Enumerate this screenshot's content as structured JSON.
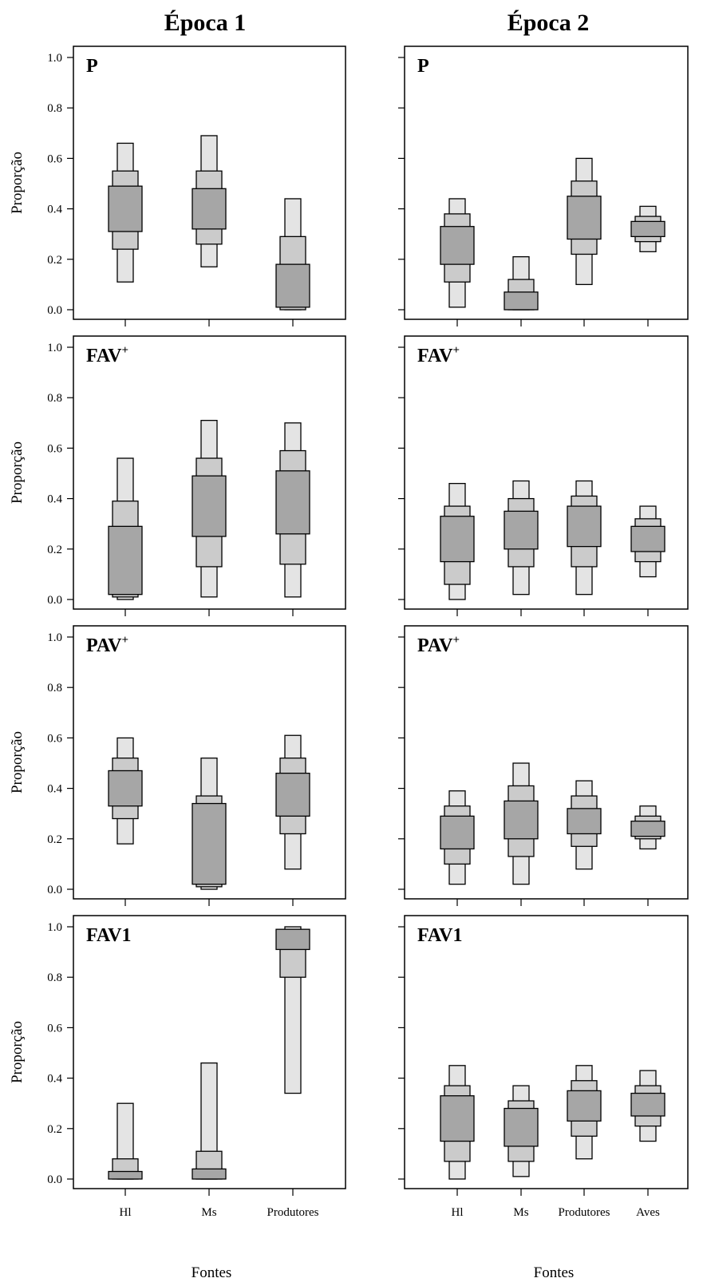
{
  "colors": {
    "ci95": "#e4e4e4",
    "ci75": "#cbcbcb",
    "ci50": "#a6a6a6",
    "outline": "#000000"
  },
  "chart_data": {
    "type": "box",
    "ylabel": "Proporção",
    "xlabel": "Fontes",
    "ylim": [
      0,
      1
    ],
    "yticks": [
      "0.0",
      "0.2",
      "0.4",
      "0.6",
      "0.8",
      "1.0"
    ],
    "columns": [
      "Época 1",
      "Época 2"
    ],
    "categories_epoca1": [
      "Hl",
      "Ms",
      "Produtores"
    ],
    "categories_epoca2": [
      "Hl",
      "Ms",
      "Produtores",
      "Aves"
    ],
    "panels": [
      {
        "column": 0,
        "row": 0,
        "label": "P",
        "sup": "",
        "series": [
          {
            "name": "Hl",
            "ci95": [
              0.11,
              0.66
            ],
            "ci75": [
              0.24,
              0.55
            ],
            "ci50": [
              0.31,
              0.49
            ]
          },
          {
            "name": "Ms",
            "ci95": [
              0.17,
              0.69
            ],
            "ci75": [
              0.26,
              0.55
            ],
            "ci50": [
              0.32,
              0.48
            ]
          },
          {
            "name": "Produtores",
            "ci95": [
              0.0,
              0.44
            ],
            "ci75": [
              0.0,
              0.29
            ],
            "ci50": [
              0.01,
              0.18
            ]
          }
        ]
      },
      {
        "column": 1,
        "row": 0,
        "label": "P",
        "sup": "",
        "series": [
          {
            "name": "Hl",
            "ci95": [
              0.01,
              0.44
            ],
            "ci75": [
              0.11,
              0.38
            ],
            "ci50": [
              0.18,
              0.33
            ]
          },
          {
            "name": "Ms",
            "ci95": [
              0.0,
              0.21
            ],
            "ci75": [
              0.0,
              0.12
            ],
            "ci50": [
              0.0,
              0.07
            ]
          },
          {
            "name": "Produtores",
            "ci95": [
              0.1,
              0.6
            ],
            "ci75": [
              0.22,
              0.51
            ],
            "ci50": [
              0.28,
              0.45
            ]
          },
          {
            "name": "Aves",
            "ci95": [
              0.23,
              0.41
            ],
            "ci75": [
              0.27,
              0.37
            ],
            "ci50": [
              0.29,
              0.35
            ]
          }
        ]
      },
      {
        "column": 0,
        "row": 1,
        "label": "FAV",
        "sup": "+",
        "series": [
          {
            "name": "Hl",
            "ci95": [
              0.0,
              0.56
            ],
            "ci75": [
              0.01,
              0.39
            ],
            "ci50": [
              0.02,
              0.29
            ]
          },
          {
            "name": "Ms",
            "ci95": [
              0.01,
              0.71
            ],
            "ci75": [
              0.13,
              0.56
            ],
            "ci50": [
              0.25,
              0.49
            ]
          },
          {
            "name": "Produtores",
            "ci95": [
              0.01,
              0.7
            ],
            "ci75": [
              0.14,
              0.59
            ],
            "ci50": [
              0.26,
              0.51
            ]
          }
        ]
      },
      {
        "column": 1,
        "row": 1,
        "label": "FAV",
        "sup": "+",
        "series": [
          {
            "name": "Hl",
            "ci95": [
              0.0,
              0.46
            ],
            "ci75": [
              0.06,
              0.37
            ],
            "ci50": [
              0.15,
              0.33
            ]
          },
          {
            "name": "Ms",
            "ci95": [
              0.02,
              0.47
            ],
            "ci75": [
              0.13,
              0.4
            ],
            "ci50": [
              0.2,
              0.35
            ]
          },
          {
            "name": "Produtores",
            "ci95": [
              0.02,
              0.47
            ],
            "ci75": [
              0.13,
              0.41
            ],
            "ci50": [
              0.21,
              0.37
            ]
          },
          {
            "name": "Aves",
            "ci95": [
              0.09,
              0.37
            ],
            "ci75": [
              0.15,
              0.32
            ],
            "ci50": [
              0.19,
              0.29
            ]
          }
        ]
      },
      {
        "column": 0,
        "row": 2,
        "label": "PAV",
        "sup": "+",
        "series": [
          {
            "name": "Hl",
            "ci95": [
              0.18,
              0.6
            ],
            "ci75": [
              0.28,
              0.52
            ],
            "ci50": [
              0.33,
              0.47
            ]
          },
          {
            "name": "Ms",
            "ci95": [
              0.0,
              0.52
            ],
            "ci75": [
              0.01,
              0.37
            ],
            "ci50": [
              0.02,
              0.34
            ]
          },
          {
            "name": "Produtores",
            "ci95": [
              0.08,
              0.61
            ],
            "ci75": [
              0.22,
              0.52
            ],
            "ci50": [
              0.29,
              0.46
            ]
          }
        ]
      },
      {
        "column": 1,
        "row": 2,
        "label": "PAV",
        "sup": "+",
        "series": [
          {
            "name": "Hl",
            "ci95": [
              0.02,
              0.39
            ],
            "ci75": [
              0.1,
              0.33
            ],
            "ci50": [
              0.16,
              0.29
            ]
          },
          {
            "name": "Ms",
            "ci95": [
              0.02,
              0.5
            ],
            "ci75": [
              0.13,
              0.41
            ],
            "ci50": [
              0.2,
              0.35
            ]
          },
          {
            "name": "Produtores",
            "ci95": [
              0.08,
              0.43
            ],
            "ci75": [
              0.17,
              0.37
            ],
            "ci50": [
              0.22,
              0.32
            ]
          },
          {
            "name": "Aves",
            "ci95": [
              0.16,
              0.33
            ],
            "ci75": [
              0.2,
              0.29
            ],
            "ci50": [
              0.21,
              0.27
            ]
          }
        ]
      },
      {
        "column": 0,
        "row": 3,
        "label": "FAV1",
        "sup": "",
        "series": [
          {
            "name": "Hl",
            "ci95": [
              0.0,
              0.3
            ],
            "ci75": [
              0.0,
              0.08
            ],
            "ci50": [
              0.0,
              0.03
            ]
          },
          {
            "name": "Ms",
            "ci95": [
              0.0,
              0.46
            ],
            "ci75": [
              0.0,
              0.11
            ],
            "ci50": [
              0.0,
              0.04
            ]
          },
          {
            "name": "Produtores",
            "ci95": [
              0.34,
              1.0
            ],
            "ci75": [
              0.8,
              0.99
            ],
            "ci50": [
              0.91,
              0.99
            ]
          }
        ]
      },
      {
        "column": 1,
        "row": 3,
        "label": "FAV1",
        "sup": "",
        "series": [
          {
            "name": "Hl",
            "ci95": [
              0.0,
              0.45
            ],
            "ci75": [
              0.07,
              0.37
            ],
            "ci50": [
              0.15,
              0.33
            ]
          },
          {
            "name": "Ms",
            "ci95": [
              0.01,
              0.37
            ],
            "ci75": [
              0.07,
              0.31
            ],
            "ci50": [
              0.13,
              0.28
            ]
          },
          {
            "name": "Produtores",
            "ci95": [
              0.08,
              0.45
            ],
            "ci75": [
              0.17,
              0.39
            ],
            "ci50": [
              0.23,
              0.35
            ]
          },
          {
            "name": "Aves",
            "ci95": [
              0.15,
              0.43
            ],
            "ci75": [
              0.21,
              0.37
            ],
            "ci50": [
              0.25,
              0.34
            ]
          }
        ]
      }
    ]
  }
}
